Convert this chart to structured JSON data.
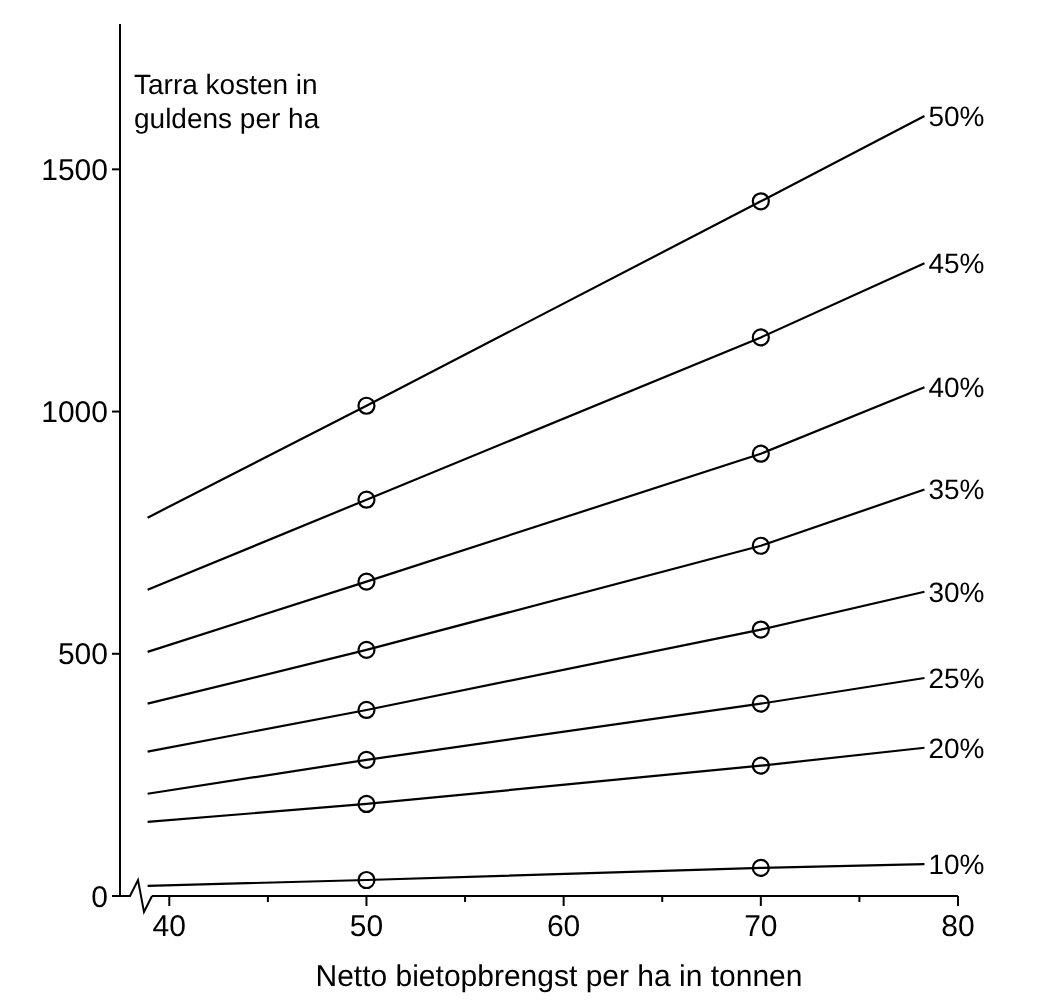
{
  "chart_data": {
    "type": "line",
    "xlabel": "Netto bietopbrengst per ha in tonnen",
    "ylabel": "Tarra kosten in guldens per ha",
    "xlim": [
      37.5,
      80
    ],
    "xticks": [
      40,
      {
        "value": 45,
        "label": null
      },
      50,
      {
        "value": 55,
        "label": null
      },
      60,
      {
        "value": 65,
        "label": null
      },
      70,
      {
        "value": 75,
        "label": null
      },
      80
    ],
    "ylim": [
      0,
      1800
    ],
    "yticks": [
      0,
      500,
      1000,
      1500
    ],
    "grid": false,
    "line_style": "solid",
    "series": [
      {
        "name": "50%",
        "color": "#000000",
        "x": [
          38.9,
          50,
          70,
          78.3
        ],
        "values": [
          781,
          1012,
          1434,
          1610
        ]
      },
      {
        "name": "45%",
        "color": "#000000",
        "x": [
          38.9,
          50,
          70,
          78.3
        ],
        "values": [
          632,
          818,
          1153,
          1306
        ]
      },
      {
        "name": "40%",
        "color": "#000000",
        "x": [
          38.9,
          50,
          70,
          78.3
        ],
        "values": [
          504,
          649,
          913,
          1050
        ]
      },
      {
        "name": "35%",
        "color": "#000000",
        "x": [
          38.9,
          50,
          70,
          78.3
        ],
        "values": [
          397,
          508,
          723,
          839
        ]
      },
      {
        "name": "30%",
        "color": "#000000",
        "x": [
          38.9,
          50,
          70,
          78.3
        ],
        "values": [
          298,
          384,
          550,
          628
        ]
      },
      {
        "name": "25%",
        "color": "#000000",
        "x": [
          38.9,
          50,
          70,
          78.3
        ],
        "values": [
          211,
          281,
          397,
          450
        ]
      },
      {
        "name": "20%",
        "color": "#000000",
        "x": [
          38.9,
          50,
          70,
          78.3
        ],
        "values": [
          153,
          190,
          269,
          306
        ]
      },
      {
        "name": "10%",
        "color": "#000000",
        "x": [
          38.9,
          50,
          70,
          78.3
        ],
        "values": [
          21,
          33,
          58,
          66
        ]
      },
      {
        "type": "scatter",
        "marker": "circle",
        "color": "#000000",
        "x": [
          50,
          70
        ],
        "values": [
          1012,
          1434
        ]
      },
      {
        "type": "scatter",
        "marker": "circle",
        "color": "#000000",
        "x": [
          50,
          70
        ],
        "values": [
          818,
          1153
        ]
      },
      {
        "type": "scatter",
        "marker": "circle",
        "color": "#000000",
        "x": [
          50,
          70
        ],
        "values": [
          649,
          913
        ]
      },
      {
        "type": "scatter",
        "marker": "circle",
        "color": "#000000",
        "x": [
          50,
          70
        ],
        "values": [
          508,
          723
        ]
      },
      {
        "type": "scatter",
        "marker": "circle",
        "color": "#000000",
        "x": [
          50,
          70
        ],
        "values": [
          384,
          550
        ]
      },
      {
        "type": "scatter",
        "marker": "circle",
        "color": "#000000",
        "x": [
          50,
          70
        ],
        "values": [
          281,
          397
        ]
      },
      {
        "type": "scatter",
        "marker": "circle",
        "color": "#000000",
        "x": [
          50,
          70
        ],
        "values": [
          190,
          269
        ]
      },
      {
        "type": "scatter",
        "marker": "circle",
        "color": "#000000",
        "x": [
          50,
          70
        ],
        "values": [
          33,
          58
        ]
      }
    ]
  }
}
